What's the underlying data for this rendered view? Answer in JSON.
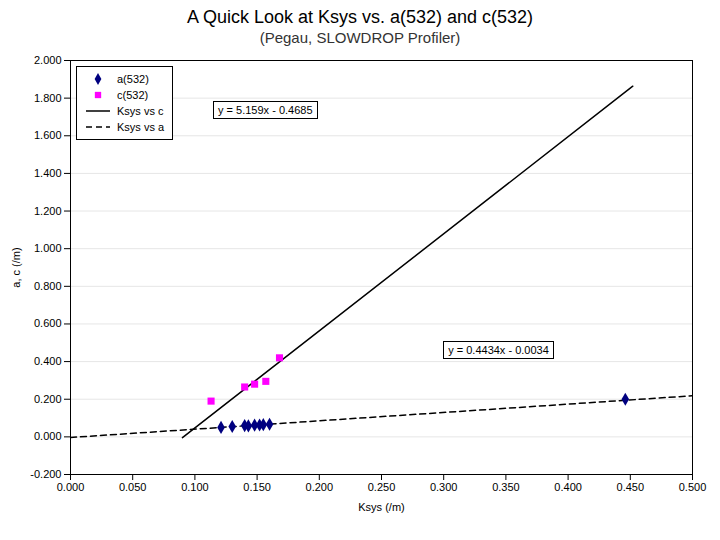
{
  "chart_data": {
    "type": "scatter",
    "title": "A Quick Look at Ksys vs. a(532) and c(532)",
    "subtitle": "(Pegau, SLOWDROP Profiler)",
    "x_label": "Ksys (/m)",
    "y_label": "a, c (/m)",
    "xlim": [
      0.0,
      0.5
    ],
    "ylim": [
      -0.2,
      2.0
    ],
    "xticks": [
      {
        "value": 0.0,
        "label": "0.000"
      },
      {
        "value": 0.05,
        "label": "0.050"
      },
      {
        "value": 0.1,
        "label": "0.100"
      },
      {
        "value": 0.15,
        "label": "0.150"
      },
      {
        "value": 0.2,
        "label": "0.200"
      },
      {
        "value": 0.25,
        "label": "0.250"
      },
      {
        "value": 0.3,
        "label": "0.300"
      },
      {
        "value": 0.35,
        "label": "0.350"
      },
      {
        "value": 0.4,
        "label": "0.400"
      },
      {
        "value": 0.45,
        "label": "0.450"
      },
      {
        "value": 0.5,
        "label": "0.500"
      }
    ],
    "yticks": [
      {
        "value": -0.2,
        "label": "-0.200"
      },
      {
        "value": 0.0,
        "label": "0.000"
      },
      {
        "value": 0.2,
        "label": "0.200"
      },
      {
        "value": 0.4,
        "label": "0.400"
      },
      {
        "value": 0.6,
        "label": "0.600"
      },
      {
        "value": 0.8,
        "label": "0.800"
      },
      {
        "value": 1.0,
        "label": "1.000"
      },
      {
        "value": 1.2,
        "label": "1.200"
      },
      {
        "value": 1.4,
        "label": "1.400"
      },
      {
        "value": 1.6,
        "label": "1.600"
      },
      {
        "value": 1.8,
        "label": "1.800"
      },
      {
        "value": 2.0,
        "label": "2.000"
      }
    ],
    "grid": "y",
    "legend": "upper left",
    "series": [
      {
        "name": "a(532)",
        "type": "scatter",
        "color": "#000080",
        "marker": "diamond",
        "x": [
          0.121,
          0.13,
          0.14,
          0.143,
          0.148,
          0.152,
          0.155,
          0.16,
          0.446
        ],
        "values": [
          0.05,
          0.055,
          0.06,
          0.058,
          0.062,
          0.063,
          0.065,
          0.067,
          0.2
        ]
      },
      {
        "name": "c(532)",
        "type": "scatter",
        "color": "#ff00ff",
        "marker": "square",
        "x": [
          0.113,
          0.14,
          0.148,
          0.157,
          0.168
        ],
        "values": [
          0.19,
          0.265,
          0.28,
          0.295,
          0.42
        ]
      },
      {
        "name": "Ksys vs c",
        "type": "line",
        "color": "#000000",
        "line_style": "solid",
        "x": [
          0.09,
          0.452
        ],
        "values": [
          -0.00419,
          1.863368
        ]
      },
      {
        "name": "Ksys vs a",
        "type": "line",
        "color": "#000000",
        "line_style": "dashed",
        "x": [
          0.0,
          0.5
        ],
        "values": [
          -0.0034,
          0.2183
        ]
      }
    ],
    "annotations": [
      {
        "text": "y = 5.159x - 0.4685"
      },
      {
        "text": "y = 0.4434x - 0.0034"
      }
    ]
  }
}
